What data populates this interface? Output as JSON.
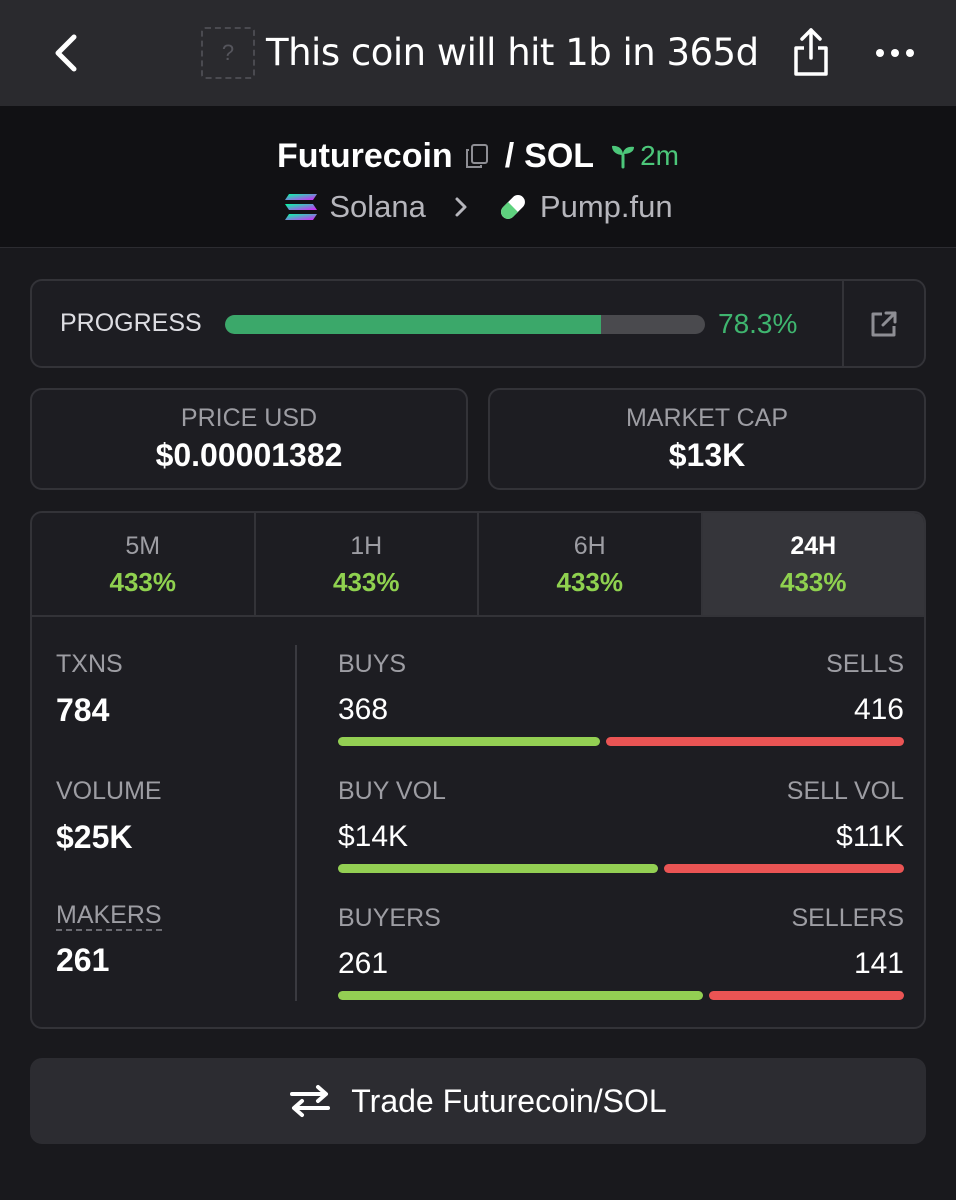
{
  "topbar": {
    "title": "This coin will hit 1b in 365d",
    "thumb_placeholder": "?"
  },
  "pair": {
    "base": "Futurecoin",
    "separator": "/",
    "quote": "SOL",
    "age": "2m",
    "chain": "Solana",
    "dex": "Pump.fun",
    "age_color": "#4cc77a"
  },
  "progress": {
    "label": "PROGRESS",
    "value_text": "78.3%",
    "fraction": 0.783,
    "fill_color": "#3ba86a"
  },
  "price": {
    "label": "PRICE USD",
    "value": "$0.00001382"
  },
  "market_cap": {
    "label": "MARKET CAP",
    "value": "$13K"
  },
  "tabs": [
    {
      "label": "5M",
      "change": "433%"
    },
    {
      "label": "1H",
      "change": "433%"
    },
    {
      "label": "6H",
      "change": "433%"
    },
    {
      "label": "24H",
      "change": "433%",
      "active": true
    }
  ],
  "metrics": {
    "txns": {
      "label": "TXNS",
      "value": "784"
    },
    "volume": {
      "label": "VOLUME",
      "value": "$25K"
    },
    "makers": {
      "label": "MAKERS",
      "value": "261"
    }
  },
  "splits": {
    "buys_sells": {
      "left_label": "BUYS",
      "right_label": "SELLS",
      "left_value": "368",
      "right_value": "416",
      "left_fraction": 0.469
    },
    "volume": {
      "left_label": "BUY VOL",
      "right_label": "SELL VOL",
      "left_value": "$14K",
      "right_value": "$11K",
      "left_fraction": 0.57
    },
    "traders": {
      "left_label": "BUYERS",
      "right_label": "SELLERS",
      "left_value": "261",
      "right_value": "141",
      "left_fraction": 0.65
    }
  },
  "colors": {
    "buy": "#93cf53",
    "sell": "#ea5454",
    "positive_change": "#8fd14f"
  },
  "trade_button": {
    "label": "Trade Futurecoin/SOL"
  }
}
